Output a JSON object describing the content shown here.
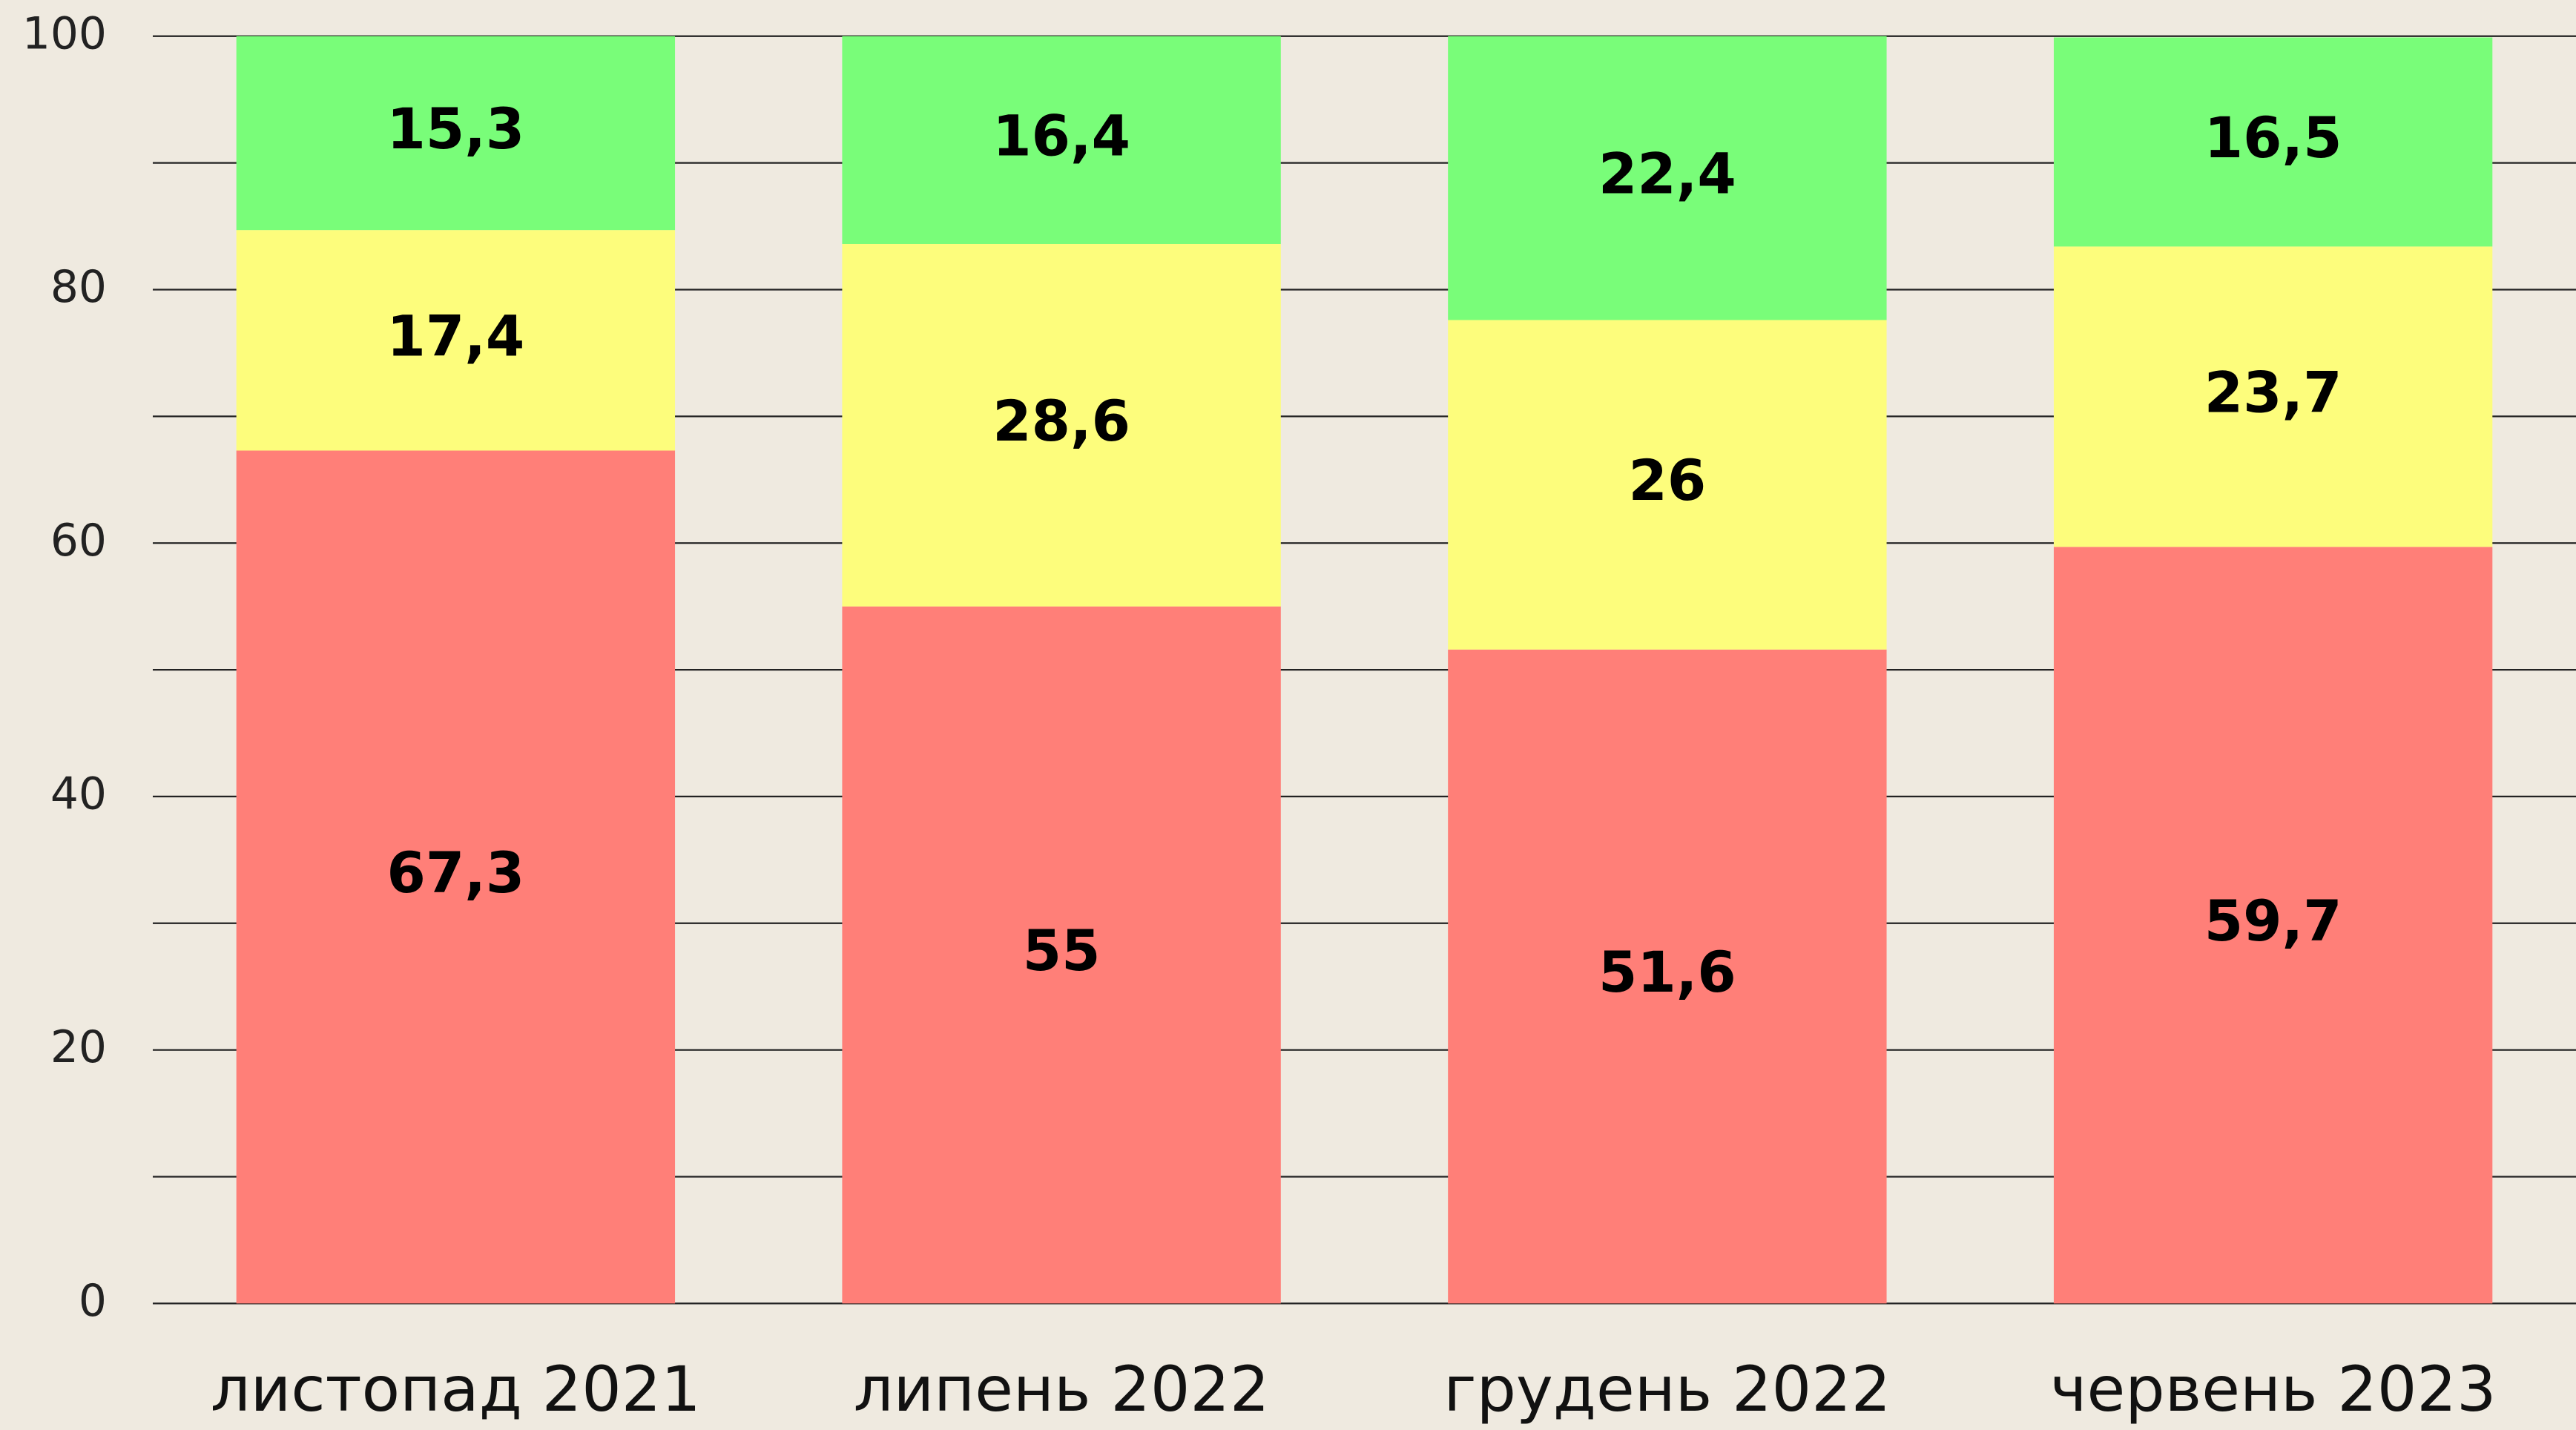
{
  "chart_data": {
    "type": "stacked_bar",
    "categories": [
      "листопад 2021",
      "липень 2022",
      "грудень 2022",
      "червень 2023"
    ],
    "series": [
      {
        "color": "#ff7f78",
        "values": [
          67.3,
          55,
          51.6,
          59.7
        ],
        "value_labels": [
          "67,3",
          "55",
          "51,6",
          "59,7"
        ]
      },
      {
        "color": "#fdfd7c",
        "values": [
          17.4,
          28.6,
          26,
          23.7
        ],
        "value_labels": [
          "17,4",
          "28,6",
          "26",
          "23,7"
        ]
      },
      {
        "color": "#79fd79",
        "values": [
          15.3,
          16.4,
          22.4,
          16.5
        ],
        "value_labels": [
          "15,3",
          "16,4",
          "22,4",
          "16,5"
        ]
      }
    ],
    "ylim": [
      0,
      100
    ],
    "yticks": [
      0,
      20,
      40,
      60,
      80,
      100
    ],
    "y_minor_ticks": [
      10,
      30,
      50,
      70,
      90
    ],
    "grid": true
  }
}
